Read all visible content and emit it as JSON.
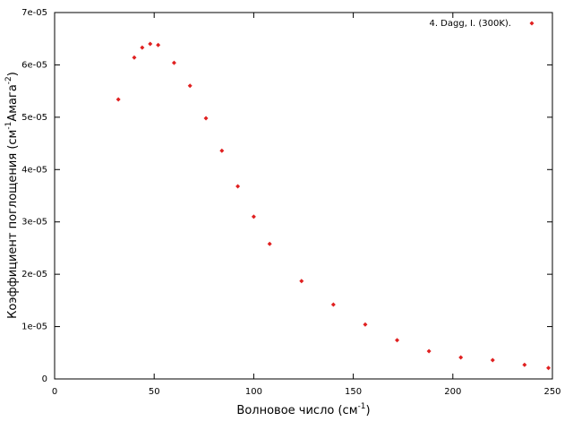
{
  "chart_data": {
    "type": "scatter",
    "xlabel": [
      "Волновое число (см",
      "-1",
      ")"
    ],
    "ylabel": [
      "Коэффициент поглощения (см",
      "-1",
      "Амага",
      "-2",
      ")"
    ],
    "series": [
      {
        "name": "4. Dagg, I. (300K).",
        "color": "#e02020",
        "x": [
          32,
          40,
          44,
          48,
          52,
          60,
          68,
          76,
          84,
          92,
          100,
          108,
          124,
          140,
          156,
          172,
          188,
          204,
          220,
          236,
          248
        ],
        "values": [
          5.34e-05,
          6.14e-05,
          6.33e-05,
          6.4e-05,
          6.38e-05,
          6.04e-05,
          5.6e-05,
          4.98e-05,
          4.36e-05,
          3.68e-05,
          3.1e-05,
          2.58e-05,
          1.87e-05,
          1.42e-05,
          1.04e-05,
          7.4e-06,
          5.3e-06,
          4.1e-06,
          3.6e-06,
          2.7e-06,
          2.1e-06
        ]
      }
    ],
    "xlim": [
      0,
      250
    ],
    "xticks": [
      0,
      50,
      100,
      150,
      200,
      250
    ],
    "ylim": [
      0,
      7e-05
    ],
    "yticks": [
      0,
      {
        "value": 1e-05,
        "label": "1e-05"
      },
      {
        "value": 2e-05,
        "label": "2e-05"
      },
      {
        "value": 3e-05,
        "label": "3e-05"
      },
      {
        "value": 4e-05,
        "label": "4e-05"
      },
      {
        "value": 5e-05,
        "label": "5e-05"
      },
      {
        "value": 6e-05,
        "label": "6e-05"
      },
      {
        "value": 7e-05,
        "label": "7e-05"
      }
    ],
    "grid": false,
    "legend": "top-right"
  }
}
